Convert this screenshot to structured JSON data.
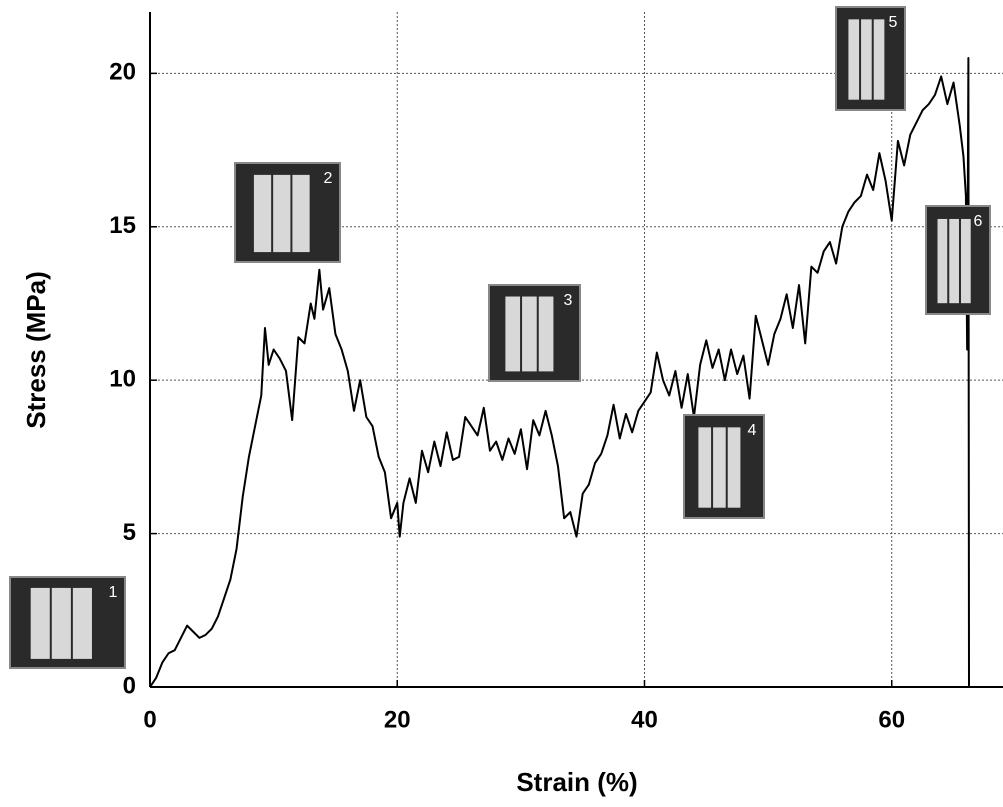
{
  "chart_data": {
    "type": "line",
    "xlabel": "Strain (%)",
    "ylabel": "Stress (MPa)",
    "x": [
      0,
      0.5,
      1,
      1.5,
      2,
      2.5,
      3,
      3.5,
      4,
      4.5,
      5,
      5.5,
      6,
      6.5,
      7,
      7.5,
      8,
      8.5,
      9,
      9.3,
      9.6,
      10,
      10.5,
      11,
      11.5,
      12,
      12.5,
      13,
      13.3,
      13.7,
      14,
      14.5,
      15,
      15.5,
      16,
      16.5,
      17,
      17.5,
      18,
      18.5,
      19,
      19.5,
      20,
      20.2,
      20.5,
      21,
      21.5,
      22,
      22.5,
      23,
      23.5,
      24,
      24.5,
      25,
      25.5,
      26,
      26.5,
      27,
      27.5,
      28,
      28.5,
      29,
      29.5,
      30,
      30.5,
      31,
      31.5,
      32,
      32.5,
      33,
      33.5,
      34,
      34.5,
      35,
      35.5,
      36,
      36.5,
      37,
      37.5,
      38,
      38.5,
      39,
      39.5,
      40,
      40.5,
      41,
      41.5,
      42,
      42.5,
      43,
      43.5,
      44,
      44.5,
      45,
      45.5,
      46,
      46.5,
      47,
      47.5,
      48,
      48.5,
      49,
      49.5,
      50,
      50.5,
      51,
      51.5,
      52,
      52.5,
      53,
      53.5,
      54,
      54.5,
      55,
      55.5,
      56,
      56.5,
      57,
      57.5,
      58,
      58.5,
      59,
      59.5,
      60,
      60.5,
      61,
      61.5,
      62,
      62.5,
      63,
      63.5,
      64,
      64.5,
      65,
      65.5,
      65.8,
      66,
      66.1,
      66.2,
      66.25
    ],
    "values": [
      0,
      0.3,
      0.8,
      1.1,
      1.2,
      1.6,
      2.0,
      1.8,
      1.6,
      1.7,
      1.9,
      2.3,
      2.9,
      3.5,
      4.5,
      6.2,
      7.5,
      8.5,
      9.5,
      11.7,
      10.5,
      11,
      10.7,
      10.3,
      8.7,
      11.4,
      11.2,
      12.5,
      12,
      13.6,
      12.3,
      13,
      11.5,
      11,
      10.3,
      9,
      10,
      8.8,
      8.5,
      7.5,
      7,
      5.5,
      6,
      4.9,
      6,
      6.8,
      6,
      7.7,
      7,
      8,
      7.2,
      8.3,
      7.4,
      7.5,
      8.8,
      8.5,
      8.2,
      9.1,
      7.7,
      8,
      7.4,
      8.1,
      7.6,
      8.4,
      7.1,
      8.7,
      8.2,
      9.0,
      8.2,
      7.2,
      5.5,
      5.7,
      4.9,
      6.3,
      6.6,
      7.3,
      7.6,
      8.2,
      9.2,
      8.1,
      8.9,
      8.3,
      9.0,
      9.3,
      9.6,
      10.9,
      10,
      9.5,
      10.3,
      9.1,
      10.2,
      8.8,
      10.5,
      11.3,
      10.4,
      11,
      10,
      11,
      10.2,
      10.8,
      9.4,
      12.1,
      11.3,
      10.5,
      11.5,
      12,
      12.8,
      11.7,
      13.1,
      11.2,
      13.7,
      13.5,
      14.2,
      14.5,
      13.8,
      15,
      15.5,
      15.8,
      16,
      16.7,
      16.2,
      17.4,
      16.5,
      15.2,
      17.8,
      17,
      18,
      18.4,
      18.8,
      19,
      19.3,
      19.9,
      19,
      19.7,
      18.3,
      17.3,
      16,
      11,
      20.5,
      0
    ],
    "color": "#000000",
    "xlim": [
      0,
      69
    ],
    "ylim": [
      0,
      22
    ],
    "xticks": [
      0,
      20,
      40,
      60
    ],
    "yticks": [
      0,
      5,
      10,
      15,
      20
    ],
    "grid": true,
    "annotations": [
      "1",
      "2",
      "3",
      "4",
      "5",
      "6"
    ]
  }
}
